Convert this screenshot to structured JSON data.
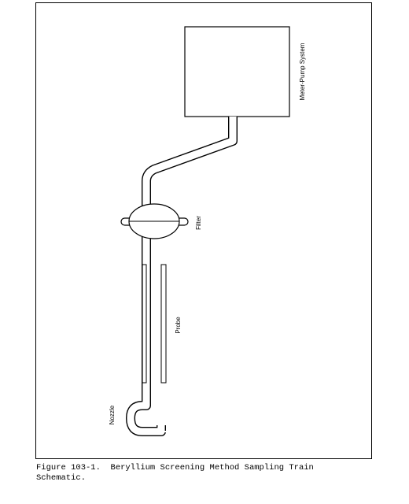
{
  "diagram": {
    "labels": {
      "meter_pump": "Meter-Pump System",
      "filter": "Filter",
      "probe": "Probe",
      "nozzle": "Nozzle"
    }
  },
  "caption": {
    "text": "Figure 103-1.  Beryllium Screening Method Sampling Train\nSchematic."
  },
  "colors": {
    "line": "#000000",
    "background": "#ffffff"
  }
}
